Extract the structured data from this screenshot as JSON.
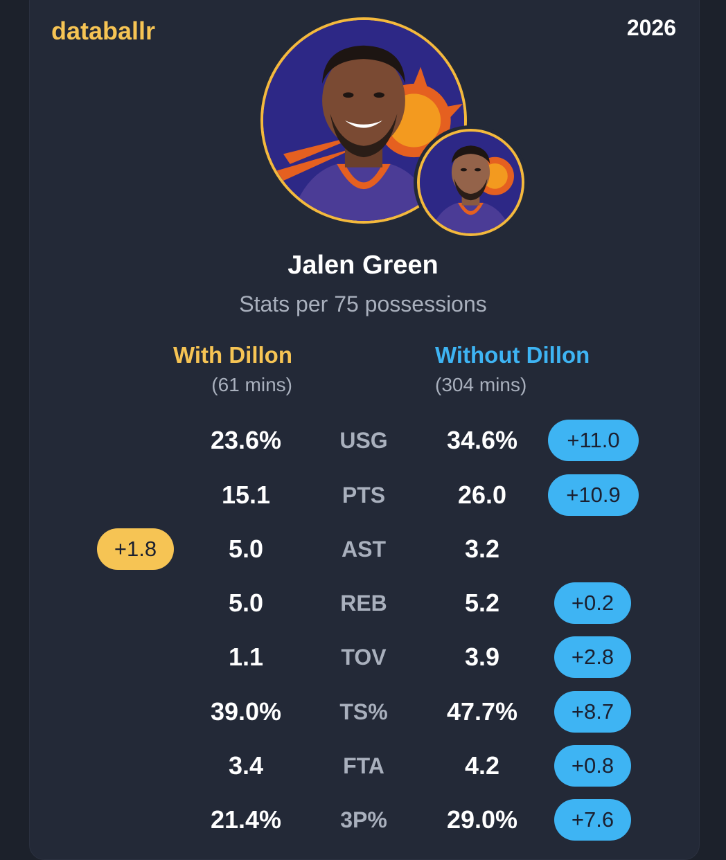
{
  "brand": "databallr",
  "season": "2026",
  "player": {
    "name": "Jalen Green",
    "subtitle": "Stats per 75 possessions"
  },
  "with_label": "With Dillon",
  "with_minutes": "(61 mins)",
  "without_label": "Without Dillon",
  "without_minutes": "(304 mins)",
  "colors": {
    "with": "#f6c454",
    "without": "#3eb4f3",
    "background": "#232937"
  },
  "stats": [
    {
      "stat": "USG",
      "with": "23.6%",
      "without": "34.6%",
      "diff": "+11.0",
      "diff_side": "without"
    },
    {
      "stat": "PTS",
      "with": "15.1",
      "without": "26.0",
      "diff": "+10.9",
      "diff_side": "without"
    },
    {
      "stat": "AST",
      "with": "5.0",
      "without": "3.2",
      "diff": "+1.8",
      "diff_side": "with"
    },
    {
      "stat": "REB",
      "with": "5.0",
      "without": "5.2",
      "diff": "+0.2",
      "diff_side": "without"
    },
    {
      "stat": "TOV",
      "with": "1.1",
      "without": "3.9",
      "diff": "+2.8",
      "diff_side": "without"
    },
    {
      "stat": "TS%",
      "with": "39.0%",
      "without": "47.7%",
      "diff": "+8.7",
      "diff_side": "without"
    },
    {
      "stat": "FTA",
      "with": "3.4",
      "without": "4.2",
      "diff": "+0.8",
      "diff_side": "without"
    },
    {
      "stat": "3P%",
      "with": "21.4%",
      "without": "29.0%",
      "diff": "+7.6",
      "diff_side": "without"
    }
  ]
}
